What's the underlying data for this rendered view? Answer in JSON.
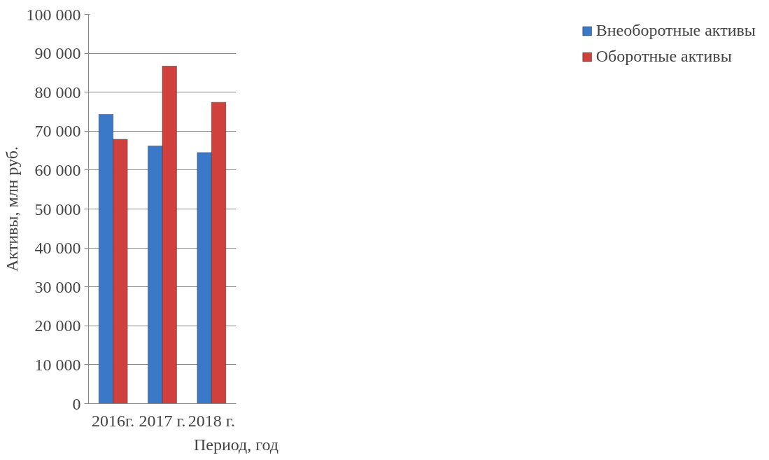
{
  "chart_data": {
    "type": "bar",
    "xlabel": "Период, год",
    "ylabel": "Активы, млн руб.",
    "categories": [
      "2016г.",
      "2017 г.",
      "2018 г."
    ],
    "series": [
      {
        "name": "Внеоборотные активы",
        "color": "#3a78c8",
        "values": [
          74300,
          66200,
          64500
        ]
      },
      {
        "name": "Оборотные активы",
        "color": "#d0403c",
        "values": [
          67900,
          86700,
          77400
        ]
      }
    ],
    "ylim": [
      0,
      100000
    ],
    "yticks": [
      {
        "value": 0,
        "label": "0"
      },
      {
        "value": 10000,
        "label": "10 000"
      },
      {
        "value": 20000,
        "label": "20 000"
      },
      {
        "value": 30000,
        "label": "30 000"
      },
      {
        "value": 40000,
        "label": "40 000"
      },
      {
        "value": 50000,
        "label": "50 000"
      },
      {
        "value": 60000,
        "label": "60 000"
      },
      {
        "value": 70000,
        "label": "70 000"
      },
      {
        "value": 80000,
        "label": "80 000"
      },
      {
        "value": 90000,
        "label": "90 000"
      },
      {
        "value": 100000,
        "label": "100 000"
      }
    ],
    "grid": "y",
    "legend": "right"
  }
}
